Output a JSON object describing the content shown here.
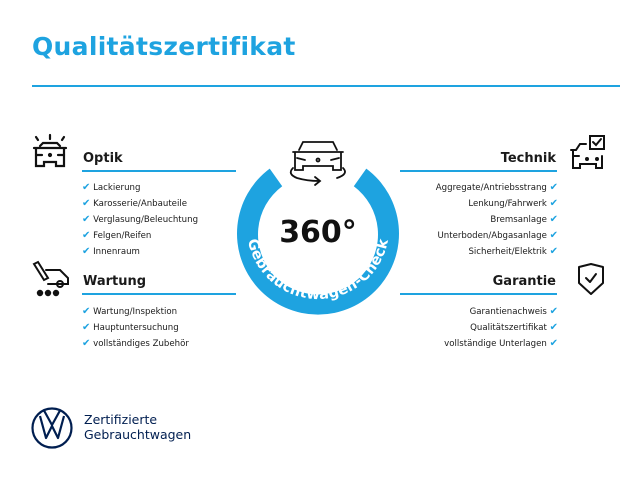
{
  "title": "Qualitätszertifikat",
  "colors": {
    "accent": "#1ea3e0",
    "brand": "#001e50"
  },
  "center": {
    "value": "360°",
    "arc_text": "Gebrauchtwagen-Check",
    "icon": "car-360-rotate-icon"
  },
  "sections": {
    "optik": {
      "title": "Optik",
      "icon": "car-lights-icon",
      "items": [
        "Lackierung",
        "Karosserie/Anbauteile",
        "Verglasung/Beleuchtung",
        "Felgen/Reifen",
        "Innenraum"
      ]
    },
    "wartung": {
      "title": "Wartung",
      "icon": "service-van-tool-icon",
      "items": [
        "Wartung/Inspektion",
        "Hauptuntersuchung",
        "vollständiges Zubehör"
      ]
    },
    "technik": {
      "title": "Technik",
      "icon": "car-checkbox-icon",
      "items": [
        "Aggregate/Antriebsstrang",
        "Lenkung/Fahrwerk",
        "Bremsanlage",
        "Unterboden/Abgasanlage",
        "Sicherheit/Elektrik"
      ]
    },
    "garantie": {
      "title": "Garantie",
      "icon": "shield-check-icon",
      "items": [
        "Garantienachweis",
        "Qualitätszertifikat",
        "vollständige Unterlagen"
      ]
    }
  },
  "check_mark": "✔",
  "footer": {
    "line1": "Zertifizierte",
    "line2": "Gebrauchtwagen",
    "logo": "vw-logo"
  }
}
